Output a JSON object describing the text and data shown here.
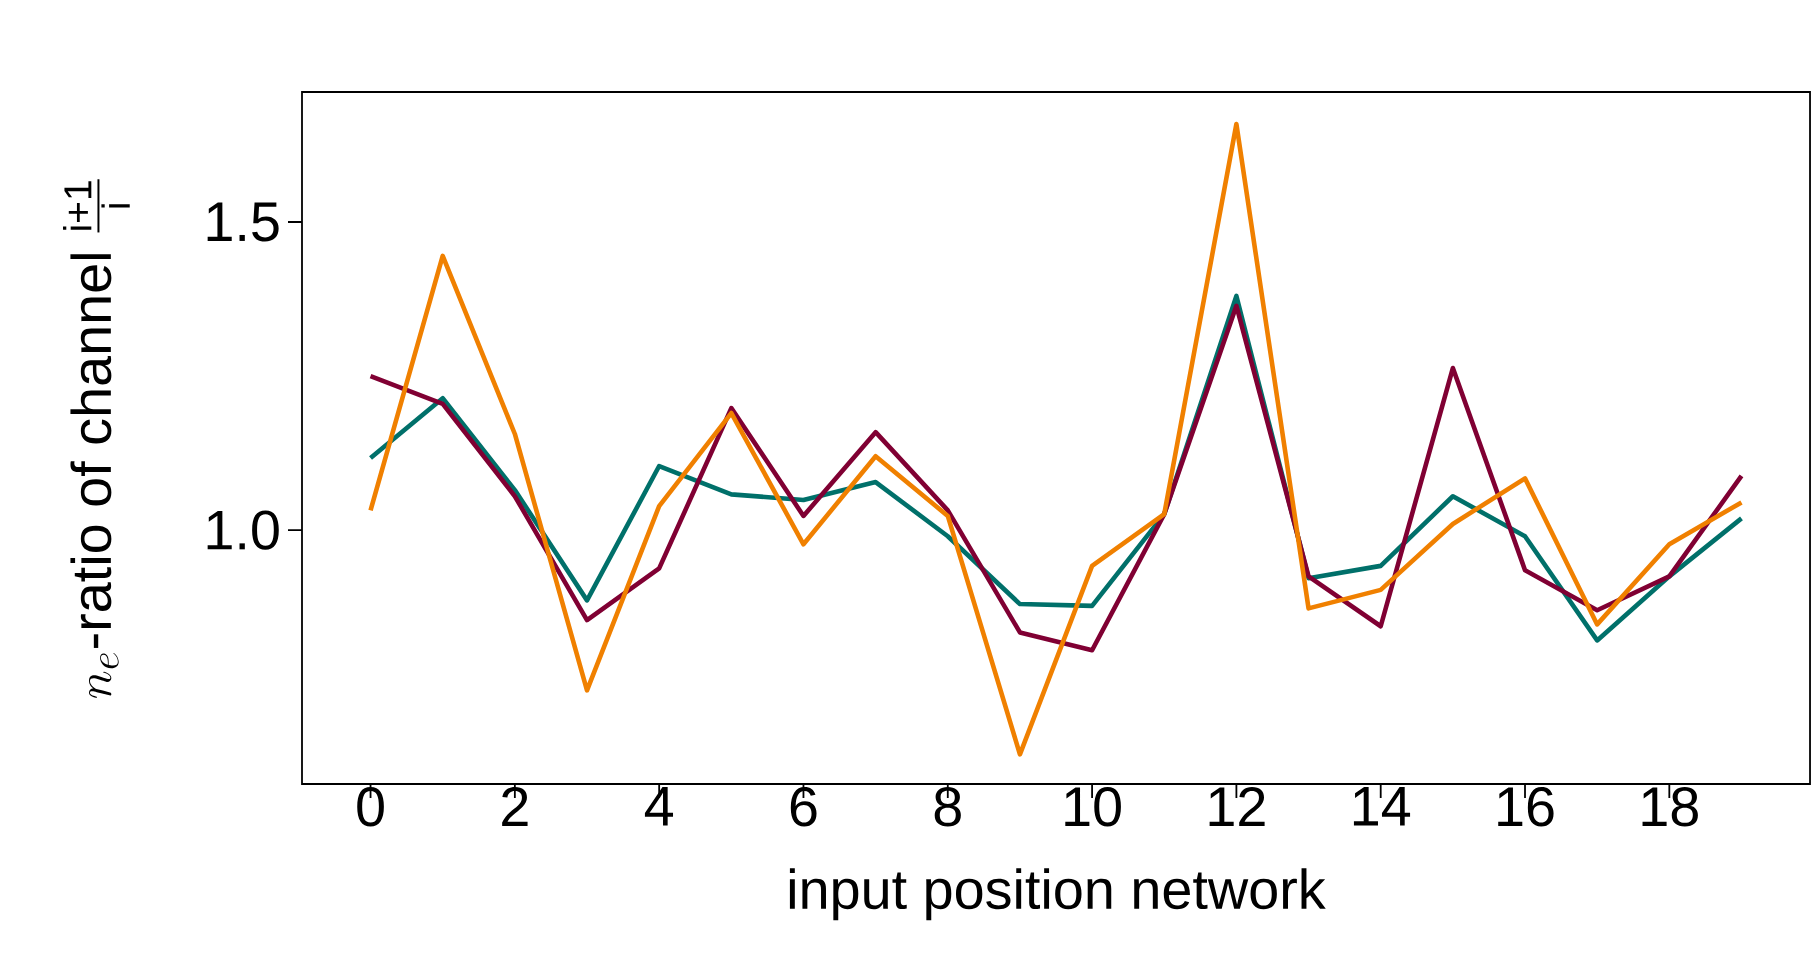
{
  "chart_data": {
    "type": "line",
    "xlabel": "input position network",
    "ylabel": "n_e\\text{-ratio of channel }\\frac{\\text{i+1}}{\\text{i}}",
    "x": [
      0,
      1,
      2,
      3,
      4,
      5,
      6,
      7,
      8,
      9,
      10,
      11,
      12,
      13,
      14,
      15,
      16,
      17,
      18,
      19
    ],
    "series": [
      {
        "color": "#00706a",
        "values": [
          1.117,
          1.214,
          1.065,
          0.886,
          1.104,
          1.058,
          1.049,
          1.078,
          0.99,
          0.88,
          0.877,
          1.026,
          1.38,
          0.922,
          0.942,
          1.055,
          0.99,
          0.821,
          0.925,
          1.019
        ]
      },
      {
        "color": "#800033",
        "values": [
          1.25,
          1.205,
          1.055,
          0.854,
          0.938,
          1.198,
          1.023,
          1.159,
          1.032,
          0.834,
          0.805,
          1.026,
          1.364,
          0.925,
          0.844,
          1.263,
          0.935,
          0.87,
          0.925,
          1.088
        ]
      },
      {
        "color": "#f08000",
        "values": [
          1.032,
          1.445,
          1.156,
          0.74,
          1.039,
          1.19,
          0.977,
          1.12,
          1.023,
          0.636,
          0.942,
          1.026,
          1.659,
          0.873,
          0.903,
          1.01,
          1.084,
          0.847,
          0.977,
          1.045
        ]
      }
    ],
    "xlim": [
      -0.95,
      19.95
    ],
    "ylim": [
      0.588,
      1.711
    ],
    "xticks": [
      0,
      2,
      4,
      6,
      8,
      10,
      12,
      14,
      16,
      18
    ],
    "yticks": [
      {
        "value": 1,
        "label": "1.0"
      },
      {
        "value": 1.5,
        "label": "1.5"
      }
    ],
    "marker": "none",
    "line_style": "solid"
  }
}
